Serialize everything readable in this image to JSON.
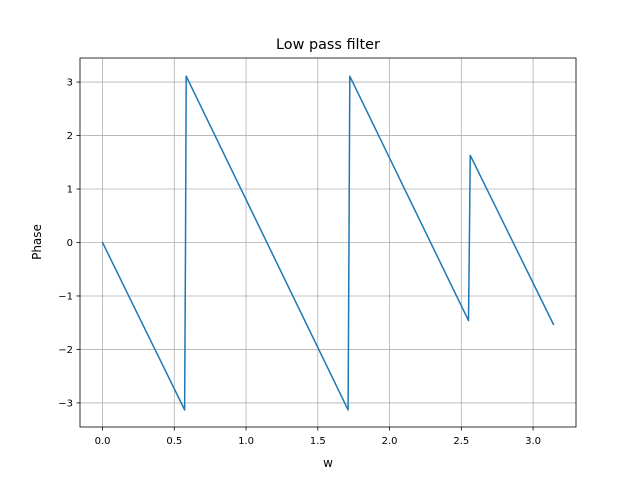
{
  "chart_data": {
    "type": "line",
    "title": "Low pass filter",
    "xlabel": "w",
    "ylabel": "Phase",
    "xlim": [
      -0.157,
      3.299
    ],
    "ylim": [
      -3.45,
      3.45
    ],
    "grid": true,
    "xticks": [
      0.0,
      0.5,
      1.0,
      1.5,
      2.0,
      2.5,
      3.0
    ],
    "xtick_labels": [
      "0.0",
      "0.5",
      "1.0",
      "1.5",
      "2.0",
      "2.5",
      "3.0"
    ],
    "yticks": [
      -3,
      -2,
      -1,
      0,
      1,
      2,
      3
    ],
    "ytick_labels": [
      "−3",
      "−2",
      "−1",
      "0",
      "1",
      "2",
      "3"
    ],
    "series": [
      {
        "name": "Phase",
        "color": "#1f77b4",
        "x": [
          0.0,
          0.572,
          0.578,
          0.583,
          1.711,
          1.717,
          1.723,
          2.55,
          2.556,
          2.562,
          3.1416
        ],
        "y": [
          0.0,
          -3.13,
          -0.1,
          3.11,
          -3.13,
          -0.1,
          3.11,
          -1.46,
          0.0,
          1.63,
          -1.53
        ]
      }
    ]
  }
}
